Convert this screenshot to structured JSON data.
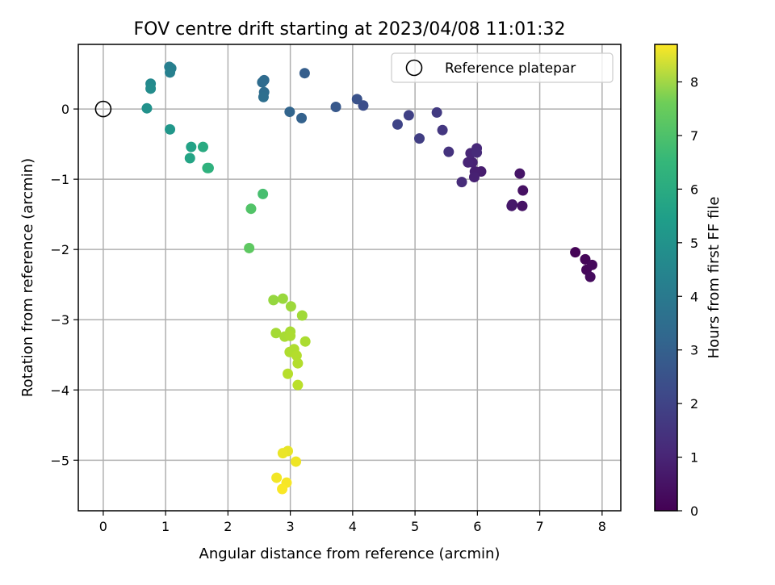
{
  "chart_data": {
    "type": "scatter",
    "title": "FOV centre drift starting at 2023/04/08 11:01:32",
    "xlabel": "Angular distance from reference (arcmin)",
    "ylabel": "Rotation from reference (arcmin)",
    "xlim": [
      -0.4,
      8.3
    ],
    "ylim": [
      -5.72,
      0.92
    ],
    "x_ticks": [
      0,
      1,
      2,
      3,
      4,
      5,
      6,
      7,
      8
    ],
    "y_ticks": [
      0,
      -1,
      -2,
      -3,
      -4,
      -5
    ],
    "x_tick_labels": [
      "0",
      "1",
      "2",
      "3",
      "4",
      "5",
      "6",
      "7",
      "8"
    ],
    "y_tick_labels": [
      "0",
      "−1",
      "−2",
      "−3",
      "−4",
      "−5"
    ],
    "grid": true,
    "colormap": "viridis",
    "colorbar": {
      "label": "Hours from first FF file",
      "range": [
        0,
        8.7
      ],
      "ticks": [
        0,
        1,
        2,
        3,
        4,
        5,
        6,
        7,
        8
      ],
      "tick_labels": [
        "0",
        "1",
        "2",
        "3",
        "4",
        "5",
        "6",
        "7",
        "8"
      ]
    },
    "legend": {
      "position": "top-right",
      "entries": [
        {
          "label": "Reference platepar",
          "marker": "open-circle"
        }
      ]
    },
    "reference_point": {
      "x": 0,
      "y": 0
    },
    "points": [
      {
        "x": 7.57,
        "y": -2.04,
        "hours": 0.05
      },
      {
        "x": 7.73,
        "y": -2.14,
        "hours": 0.1
      },
      {
        "x": 7.75,
        "y": -2.29,
        "hours": 0.15
      },
      {
        "x": 7.84,
        "y": -2.22,
        "hours": 0.2
      },
      {
        "x": 7.81,
        "y": -2.39,
        "hours": 0.25
      },
      {
        "x": 6.73,
        "y": -1.16,
        "hours": 0.4
      },
      {
        "x": 6.72,
        "y": -1.38,
        "hours": 0.45
      },
      {
        "x": 6.68,
        "y": -0.92,
        "hours": 0.5
      },
      {
        "x": 6.56,
        "y": -1.36,
        "hours": 0.55
      },
      {
        "x": 6.55,
        "y": -1.38,
        "hours": 0.6
      },
      {
        "x": 6.06,
        "y": -0.89,
        "hours": 0.7
      },
      {
        "x": 5.96,
        "y": -0.89,
        "hours": 0.75
      },
      {
        "x": 5.95,
        "y": -0.97,
        "hours": 0.8
      },
      {
        "x": 5.92,
        "y": -0.76,
        "hours": 0.85
      },
      {
        "x": 5.85,
        "y": -0.76,
        "hours": 0.9
      },
      {
        "x": 5.89,
        "y": -0.63,
        "hours": 0.95
      },
      {
        "x": 5.99,
        "y": -0.56,
        "hours": 1.0
      },
      {
        "x": 5.99,
        "y": -0.62,
        "hours": 1.05
      },
      {
        "x": 5.75,
        "y": -1.04,
        "hours": 1.1
      },
      {
        "x": 5.54,
        "y": -0.61,
        "hours": 1.3
      },
      {
        "x": 5.44,
        "y": -0.3,
        "hours": 1.4
      },
      {
        "x": 5.35,
        "y": -0.05,
        "hours": 1.5
      },
      {
        "x": 5.07,
        "y": -0.42,
        "hours": 1.6
      },
      {
        "x": 4.9,
        "y": -0.09,
        "hours": 1.7
      },
      {
        "x": 4.72,
        "y": -0.22,
        "hours": 1.8
      },
      {
        "x": 4.17,
        "y": 0.05,
        "hours": 2.1
      },
      {
        "x": 4.07,
        "y": 0.14,
        "hours": 2.2
      },
      {
        "x": 3.73,
        "y": 0.03,
        "hours": 2.4
      },
      {
        "x": 3.23,
        "y": 0.51,
        "hours": 2.6
      },
      {
        "x": 3.18,
        "y": -0.13,
        "hours": 2.7
      },
      {
        "x": 2.99,
        "y": -0.04,
        "hours": 2.8
      },
      {
        "x": 2.58,
        "y": 0.41,
        "hours": 3.0
      },
      {
        "x": 2.55,
        "y": 0.38,
        "hours": 3.05
      },
      {
        "x": 2.58,
        "y": 0.24,
        "hours": 3.1
      },
      {
        "x": 2.57,
        "y": 0.17,
        "hours": 3.15
      },
      {
        "x": 1.06,
        "y": 0.6,
        "hours": 3.7
      },
      {
        "x": 1.09,
        "y": 0.58,
        "hours": 3.75
      },
      {
        "x": 1.07,
        "y": 0.52,
        "hours": 3.8
      },
      {
        "x": 0.76,
        "y": 0.36,
        "hours": 4.1
      },
      {
        "x": 0.76,
        "y": 0.29,
        "hours": 4.2
      },
      {
        "x": 0.7,
        "y": 0.01,
        "hours": 4.4
      },
      {
        "x": 1.07,
        "y": -0.29,
        "hours": 4.6
      },
      {
        "x": 1.41,
        "y": -0.54,
        "hours": 5.0
      },
      {
        "x": 1.39,
        "y": -0.7,
        "hours": 5.05
      },
      {
        "x": 1.6,
        "y": -0.54,
        "hours": 5.3
      },
      {
        "x": 1.69,
        "y": -0.84,
        "hours": 5.5
      },
      {
        "x": 1.67,
        "y": -0.84,
        "hours": 5.55
      },
      {
        "x": 2.56,
        "y": -1.21,
        "hours": 6.1
      },
      {
        "x": 2.37,
        "y": -1.42,
        "hours": 6.3
      },
      {
        "x": 2.34,
        "y": -1.98,
        "hours": 6.5
      },
      {
        "x": 2.73,
        "y": -2.72,
        "hours": 7.3
      },
      {
        "x": 2.88,
        "y": -2.7,
        "hours": 7.35
      },
      {
        "x": 3.01,
        "y": -2.81,
        "hours": 7.4
      },
      {
        "x": 3.19,
        "y": -2.94,
        "hours": 7.45
      },
      {
        "x": 2.77,
        "y": -3.19,
        "hours": 7.5
      },
      {
        "x": 2.91,
        "y": -3.24,
        "hours": 7.55
      },
      {
        "x": 3.0,
        "y": -3.17,
        "hours": 7.55
      },
      {
        "x": 3.0,
        "y": -3.23,
        "hours": 7.6
      },
      {
        "x": 3.24,
        "y": -3.31,
        "hours": 7.6
      },
      {
        "x": 2.99,
        "y": -3.46,
        "hours": 7.65
      },
      {
        "x": 3.06,
        "y": -3.42,
        "hours": 7.65
      },
      {
        "x": 3.1,
        "y": -3.51,
        "hours": 7.7
      },
      {
        "x": 3.12,
        "y": -3.62,
        "hours": 7.7
      },
      {
        "x": 2.96,
        "y": -3.77,
        "hours": 7.75
      },
      {
        "x": 3.12,
        "y": -3.93,
        "hours": 7.8
      },
      {
        "x": 2.96,
        "y": -4.87,
        "hours": 8.4
      },
      {
        "x": 2.88,
        "y": -4.9,
        "hours": 8.45
      },
      {
        "x": 3.09,
        "y": -5.02,
        "hours": 8.5
      },
      {
        "x": 2.78,
        "y": -5.25,
        "hours": 8.55
      },
      {
        "x": 2.94,
        "y": -5.32,
        "hours": 8.6
      },
      {
        "x": 2.87,
        "y": -5.41,
        "hours": 8.65
      }
    ]
  }
}
